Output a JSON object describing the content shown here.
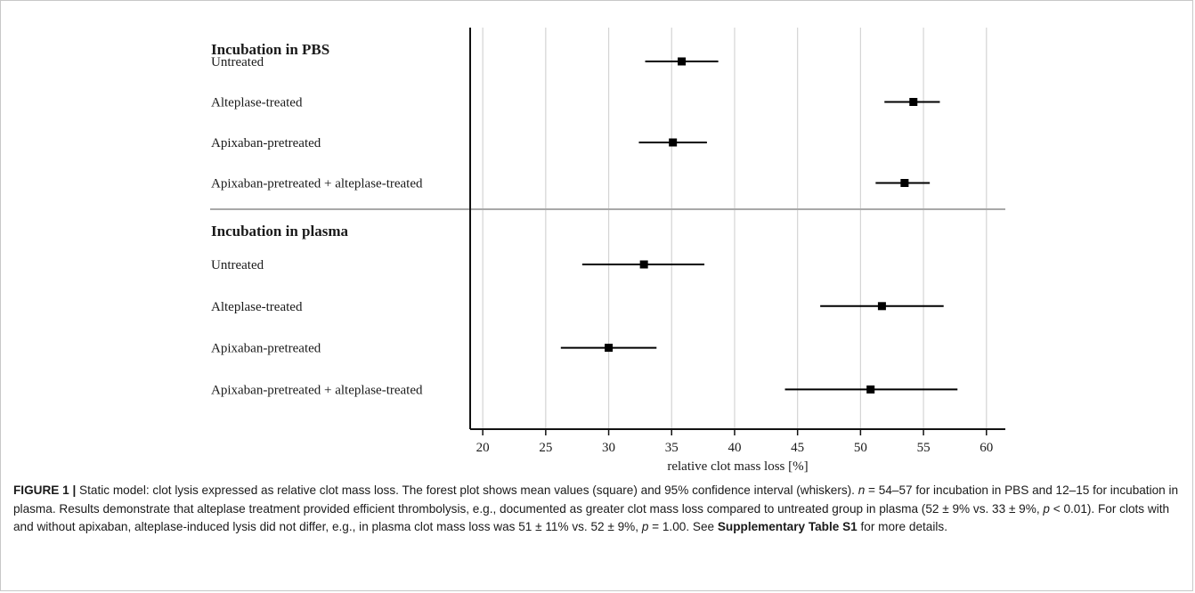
{
  "chart_data": {
    "type": "forest",
    "xlabel": "relative clot mass loss [%]",
    "xlim": [
      19,
      61.5
    ],
    "xticks": [
      20,
      25,
      30,
      35,
      40,
      45,
      50,
      55,
      60
    ],
    "grid": true,
    "panels": [
      {
        "title": "Incubation in PBS",
        "rows": [
          {
            "label": "Untreated",
            "mean": 35.8,
            "low": 32.9,
            "high": 38.7
          },
          {
            "label": "Alteplase-treated",
            "mean": 54.2,
            "low": 51.9,
            "high": 56.3
          },
          {
            "label": "Apixaban-pretreated",
            "mean": 35.1,
            "low": 32.4,
            "high": 37.8
          },
          {
            "label": "Apixaban-pretreated + alteplase-treated",
            "mean": 53.5,
            "low": 51.2,
            "high": 55.5
          }
        ]
      },
      {
        "title": "Incubation in plasma",
        "rows": [
          {
            "label": "Untreated",
            "mean": 32.8,
            "low": 27.9,
            "high": 37.6
          },
          {
            "label": "Alteplase-treated",
            "mean": 51.7,
            "low": 46.8,
            "high": 56.6
          },
          {
            "label": "Apixaban-pretreated",
            "mean": 30.0,
            "low": 26.2,
            "high": 33.8
          },
          {
            "label": "Apixaban-pretreated + alteplase-treated",
            "mean": 50.8,
            "low": 44.0,
            "high": 57.7
          }
        ]
      }
    ]
  },
  "caption": {
    "figure_label": "FIGURE 1 |",
    "seg1": " Static model: clot lysis expressed as relative clot mass loss. The forest plot shows mean values (square) and 95% confidence interval (whiskers). ",
    "n_symbol": "n",
    "seg2": " = 54–57 for incubation in PBS and 12–15 for incubation in plasma. Results demonstrate that alteplase treatment provided efficient thrombolysis, e.g., documented as greater clot mass loss compared to untreated group in plasma (52 ± 9% vs. 33 ± 9%, ",
    "p_symbol_1": "p",
    "seg3": " < 0.01). For clots with and without apixaban, alteplase-induced lysis did not differ, e.g., in plasma clot mass loss was 51 ± 11% vs. 52 ± 9%, ",
    "p_symbol_2": "p",
    "seg4": " = 1.00. See ",
    "supp_ref": "Supplementary Table S1",
    "seg5": " for more details."
  },
  "colors": {
    "axis": "#111111",
    "grid": "#d4d4d4",
    "separator": "#a8a8a8",
    "marker": "#000000",
    "text": "#1a1a1a"
  }
}
